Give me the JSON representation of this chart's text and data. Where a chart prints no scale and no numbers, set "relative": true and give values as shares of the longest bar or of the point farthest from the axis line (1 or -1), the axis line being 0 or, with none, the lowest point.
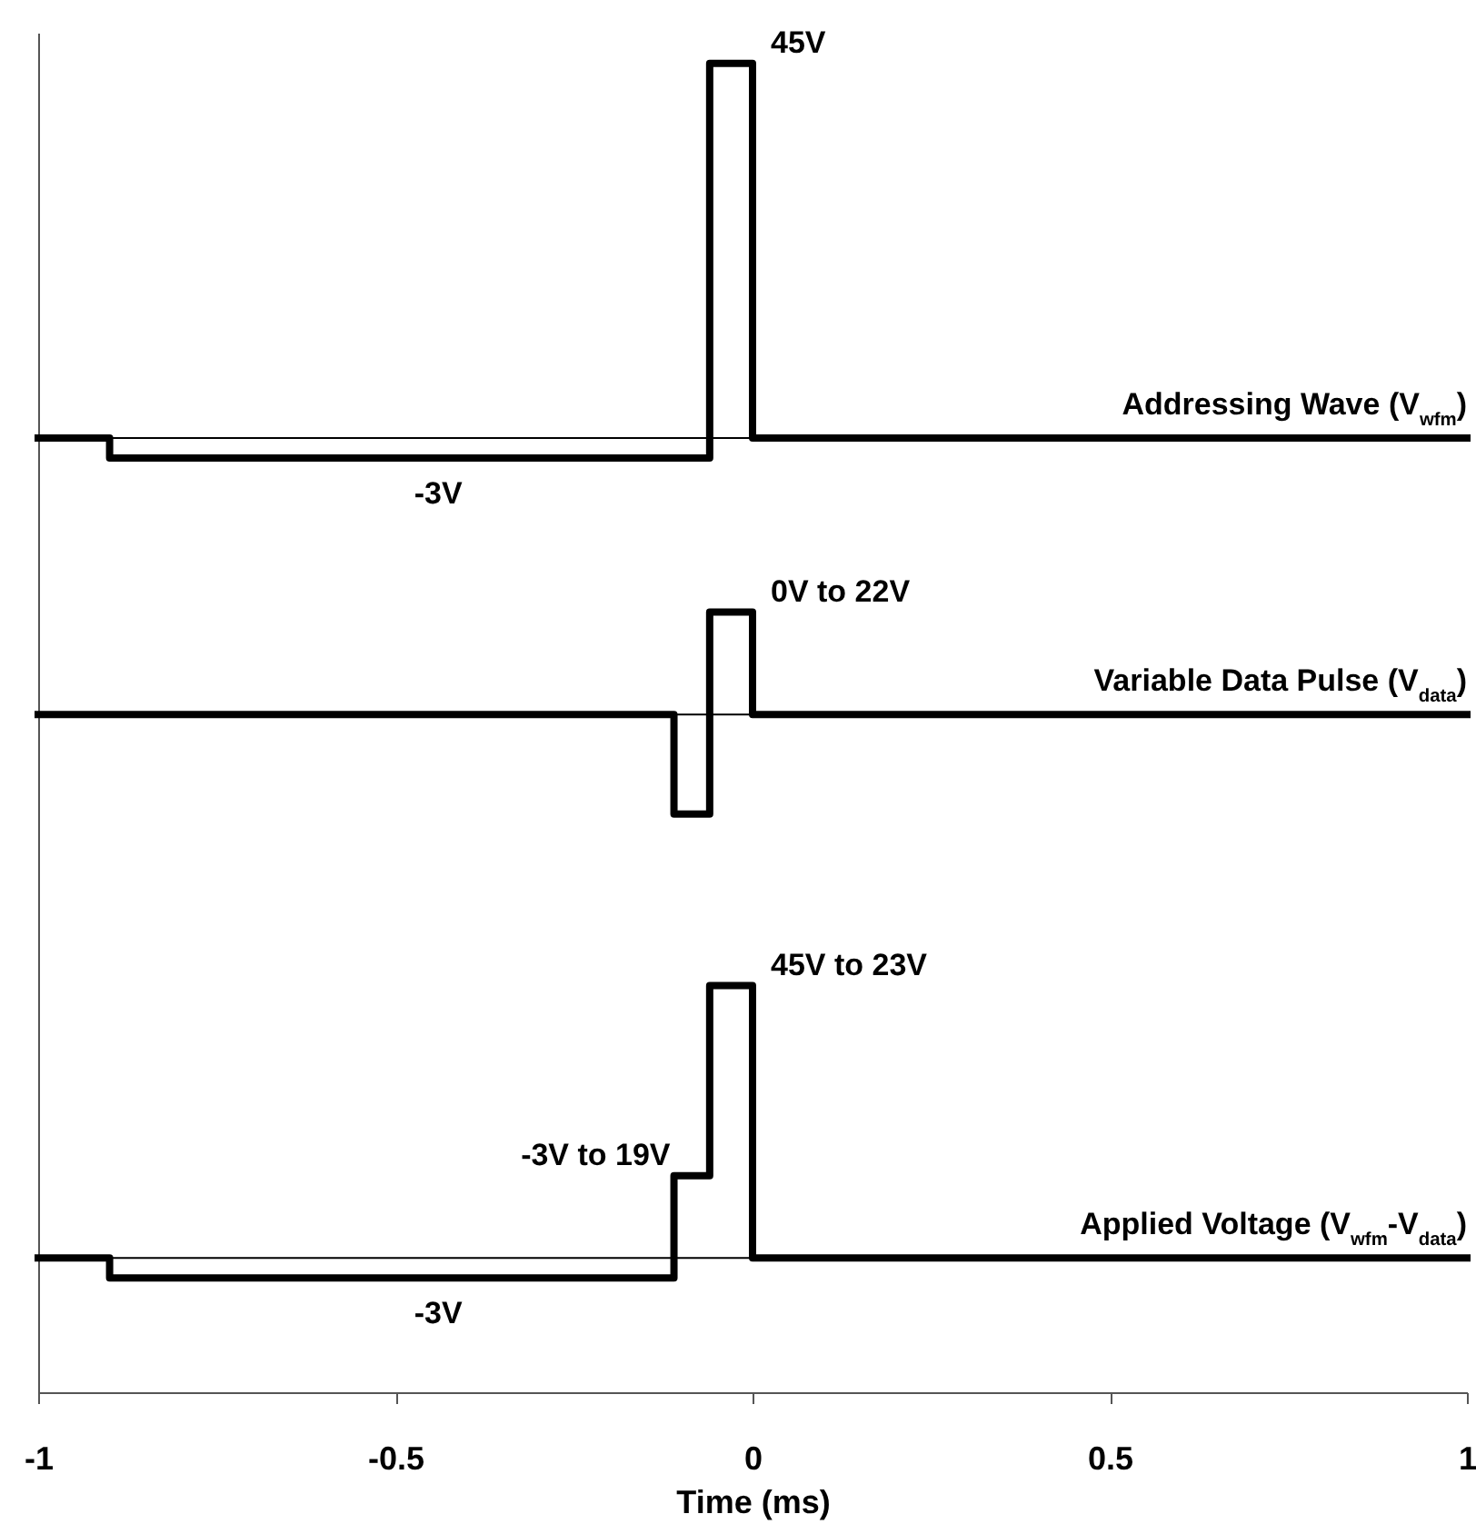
{
  "chart_data": {
    "type": "step",
    "relative": true,
    "xlabel": "Time (ms)",
    "xlim": [
      -1,
      1
    ],
    "xticks": [
      -1,
      -0.5,
      0,
      0.5,
      1
    ],
    "grid": false,
    "line_style": "solid",
    "series": [
      {
        "name": "Addressing Wave (V$_{wfm}$)",
        "color": "#000000",
        "x": [
          -1,
          -0.9,
          -0.06,
          0,
          1
        ],
        "values": [
          0.718,
          0.703,
          1,
          0.718,
          0.718
        ]
      },
      {
        "name": "Variable Data Pulse (V$_{data}$)",
        "color": "#000000",
        "x": [
          -1,
          -0.11,
          -0.06,
          0,
          1
        ],
        "values": [
          0.51,
          0.435,
          0.587,
          0.51,
          0.51
        ]
      },
      {
        "name": "Applied Voltage (V$_{wfm}$-V$_{data}$)",
        "color": "#000000",
        "x": [
          -1,
          -0.9,
          -0.11,
          -0.06,
          0,
          1
        ],
        "values": [
          0.101,
          0.086,
          0.163,
          0.306,
          0.101,
          0.101
        ]
      }
    ],
    "ref_lines": [
      {
        "axis": "y",
        "value": 0.718,
        "color": "#000000"
      },
      {
        "axis": "y",
        "value": 0.51,
        "color": "#000000"
      },
      {
        "axis": "y",
        "value": 0.101,
        "color": "#000000"
      }
    ],
    "annotations": [
      {
        "text": "45V",
        "x": 0,
        "y": 1
      },
      {
        "text": "-3V",
        "x": -0.44,
        "y": 0.703
      },
      {
        "text": "0V to 22V",
        "x": 0,
        "y": 0.587
      },
      {
        "text": "-3V to 19V",
        "x": -0.11,
        "y": 0.163
      },
      {
        "text": "45V to 23V",
        "x": 0,
        "y": 0.306
      },
      {
        "text": "-3V",
        "x": -0.44,
        "y": 0.086
      }
    ]
  }
}
